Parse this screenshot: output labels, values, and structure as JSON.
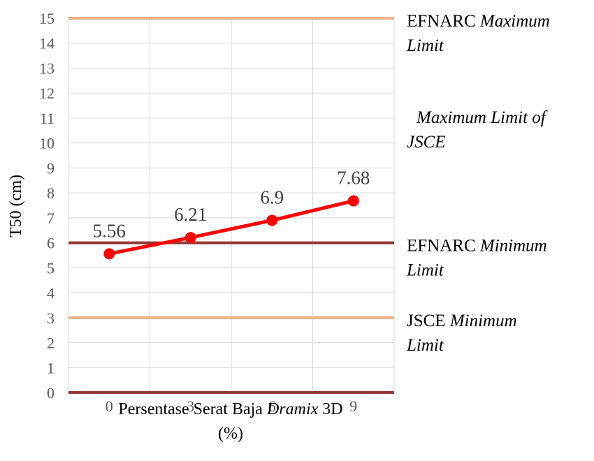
{
  "chart_data": {
    "type": "line",
    "title": "",
    "categories": [
      "0",
      "3",
      "6",
      "9"
    ],
    "series": [
      {
        "values": [
          5.56,
          6.21,
          6.9,
          7.68
        ],
        "color": "#ff0000"
      }
    ],
    "data_labels": [
      "5.56",
      "6.21",
      "6.9",
      "7.68"
    ],
    "ylabel": "T50 (cm)",
    "xlabel_parts": {
      "pre": "Persentase Serat Baja ",
      "italic": "Dramix",
      "post": " 3D",
      "line2": "(%)"
    },
    "ylim": [
      0,
      15
    ],
    "yticks": [
      "0",
      "1",
      "2",
      "3",
      "4",
      "5",
      "6",
      "7",
      "8",
      "9",
      "10",
      "11",
      "12",
      "13",
      "14",
      "15"
    ],
    "grid": true,
    "reference_lines": [
      {
        "value": 15,
        "color": "#f4b183",
        "label_line1_pre": "EFNARC ",
        "label_line1_italic": "Maximum",
        "label_line2": "Limit"
      },
      {
        "value": 6,
        "color": "#943634",
        "label_line1_pre": "EFNARC ",
        "label_line1_italic": "Minimum",
        "label_line2": "Limit"
      },
      {
        "value": 3,
        "color": "#f4b183",
        "label_line1_pre": "JSCE ",
        "label_line1_italic": "Minimum",
        "label_line2": "Limit"
      },
      {
        "value": 0,
        "color": "#943634",
        "label_line1_pre": "",
        "label_line1_italic": "",
        "label_line2": ""
      }
    ],
    "extra_annotations": [
      {
        "line1": "Maximum Limit of",
        "line2": "JSCE"
      }
    ]
  }
}
